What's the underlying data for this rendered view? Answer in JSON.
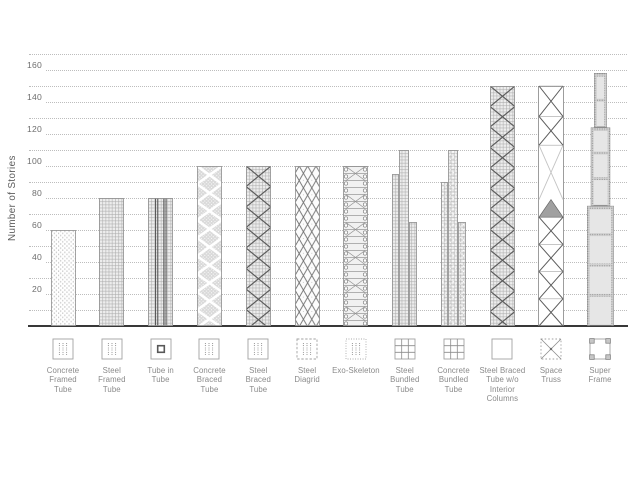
{
  "chart_data": {
    "type": "bar",
    "title": "",
    "ylabel": "Number of Stories",
    "ylim": [
      0,
      170
    ],
    "yticks": [
      20,
      40,
      60,
      80,
      100,
      120,
      140,
      160
    ],
    "grid": "dotted horizontal gridlines every 10 stories, labels every 20",
    "legend_position": "none",
    "categories": [
      "Concrete Framed Tube",
      "Steel Framed Tube",
      "Tube in Tube",
      "Concrete Braced Tube",
      "Steel Braced Tube",
      "Steel Diagrid",
      "Exo-Skeleton",
      "Steel Bundled Tube",
      "Concrete Bundled Tube",
      "Steel Braced Tube w/o Interior Columns",
      "Space Truss",
      "Super Frame"
    ],
    "values": [
      60,
      80,
      80,
      100,
      100,
      100,
      100,
      110,
      110,
      150,
      150,
      158
    ],
    "notes": "bundled tube bars are stepped towers (sections of about 95/110/65 and 90/110/65 stories); super frame is a three-tier tower of about 75/124/158 stories; space truss bar shows X-bracing with a shaded transfer truss triangle near story 70-80"
  },
  "axis": {
    "tick_labels": [
      "20",
      "40",
      "60",
      "80",
      "100",
      "120",
      "140",
      "160"
    ]
  },
  "colors": {
    "background": "#ffffff",
    "gridline": "#bdbdbd",
    "axis_line": "#383838",
    "tick_text": "#6e6e6e",
    "label_text": "#8a8a8a",
    "bar_outline": "#8f8f8f",
    "brace_dark": "#5c5c5c",
    "truss_triangle_fill": "#a0a0a0",
    "light_fill": "#ececec"
  },
  "bars": [
    {
      "name": "concrete-framed-tube",
      "label": "Concrete\nFramed\nTube",
      "stories": 60,
      "pattern": "concrete",
      "icon": "dots-solid",
      "shape": "rect"
    },
    {
      "name": "steel-framed-tube",
      "label": "Steel\nFramed\nTube",
      "stories": 80,
      "pattern": "grid",
      "icon": "dots-solid",
      "shape": "rect"
    },
    {
      "name": "tube-in-tube",
      "label": "Tube in\nTube",
      "stories": 80,
      "pattern": "tube-in-tube",
      "icon": "tube-in-tube",
      "shape": "rect"
    },
    {
      "name": "concrete-braced-tube",
      "label": "Concrete\nBraced\nTube",
      "stories": 100,
      "pattern": "concrete-braced",
      "icon": "dots-solid",
      "shape": "rect"
    },
    {
      "name": "steel-braced-tube",
      "label": "Steel\nBraced\nTube",
      "stories": 100,
      "pattern": "steel-braced",
      "icon": "dots-solid",
      "shape": "rect"
    },
    {
      "name": "steel-diagrid",
      "label": "Steel\nDiagrid",
      "stories": 100,
      "pattern": "diagrid",
      "icon": "dots-dashed",
      "shape": "rect"
    },
    {
      "name": "exo-skeleton",
      "label": "Exo-Skeleton",
      "stories": 100,
      "pattern": "exo",
      "icon": "dots-dotted",
      "shape": "rect"
    },
    {
      "name": "steel-bundled-tube",
      "label": "Steel\nBundled\nTube",
      "stories": 110,
      "pattern": "grid",
      "icon": "nine-grid",
      "shape": "steps",
      "steps": [
        {
          "w": 0.28,
          "stories": 95
        },
        {
          "w": 0.4,
          "stories": 110
        },
        {
          "w": 0.32,
          "stories": 65
        }
      ]
    },
    {
      "name": "concrete-bundled-tube",
      "label": "Concrete\nBundled\nTube",
      "stories": 110,
      "pattern": "grid-dots",
      "icon": "nine-grid",
      "shape": "steps",
      "steps": [
        {
          "w": 0.28,
          "stories": 90
        },
        {
          "w": 0.4,
          "stories": 110
        },
        {
          "w": 0.32,
          "stories": 65
        }
      ]
    },
    {
      "name": "steel-braced-tube-wo-interior-columns",
      "label": "Steel Braced\nTube w/o\nInterior\nColumns",
      "stories": 150,
      "pattern": "steel-braced",
      "icon": "plain-square",
      "shape": "rect"
    },
    {
      "name": "space-truss",
      "label": "Space\nTruss",
      "stories": 150,
      "pattern": "space-truss",
      "icon": "x-square",
      "shape": "truss",
      "triangle_band": [
        68,
        79
      ]
    },
    {
      "name": "super-frame",
      "label": "Super\nFrame",
      "stories": 158,
      "pattern": "super-frame",
      "icon": "corner-frame",
      "shape": "superframe",
      "tiers": [
        {
          "top_stories": 75
        },
        {
          "top_stories": 124
        },
        {
          "top_stories": 158
        }
      ]
    }
  ]
}
